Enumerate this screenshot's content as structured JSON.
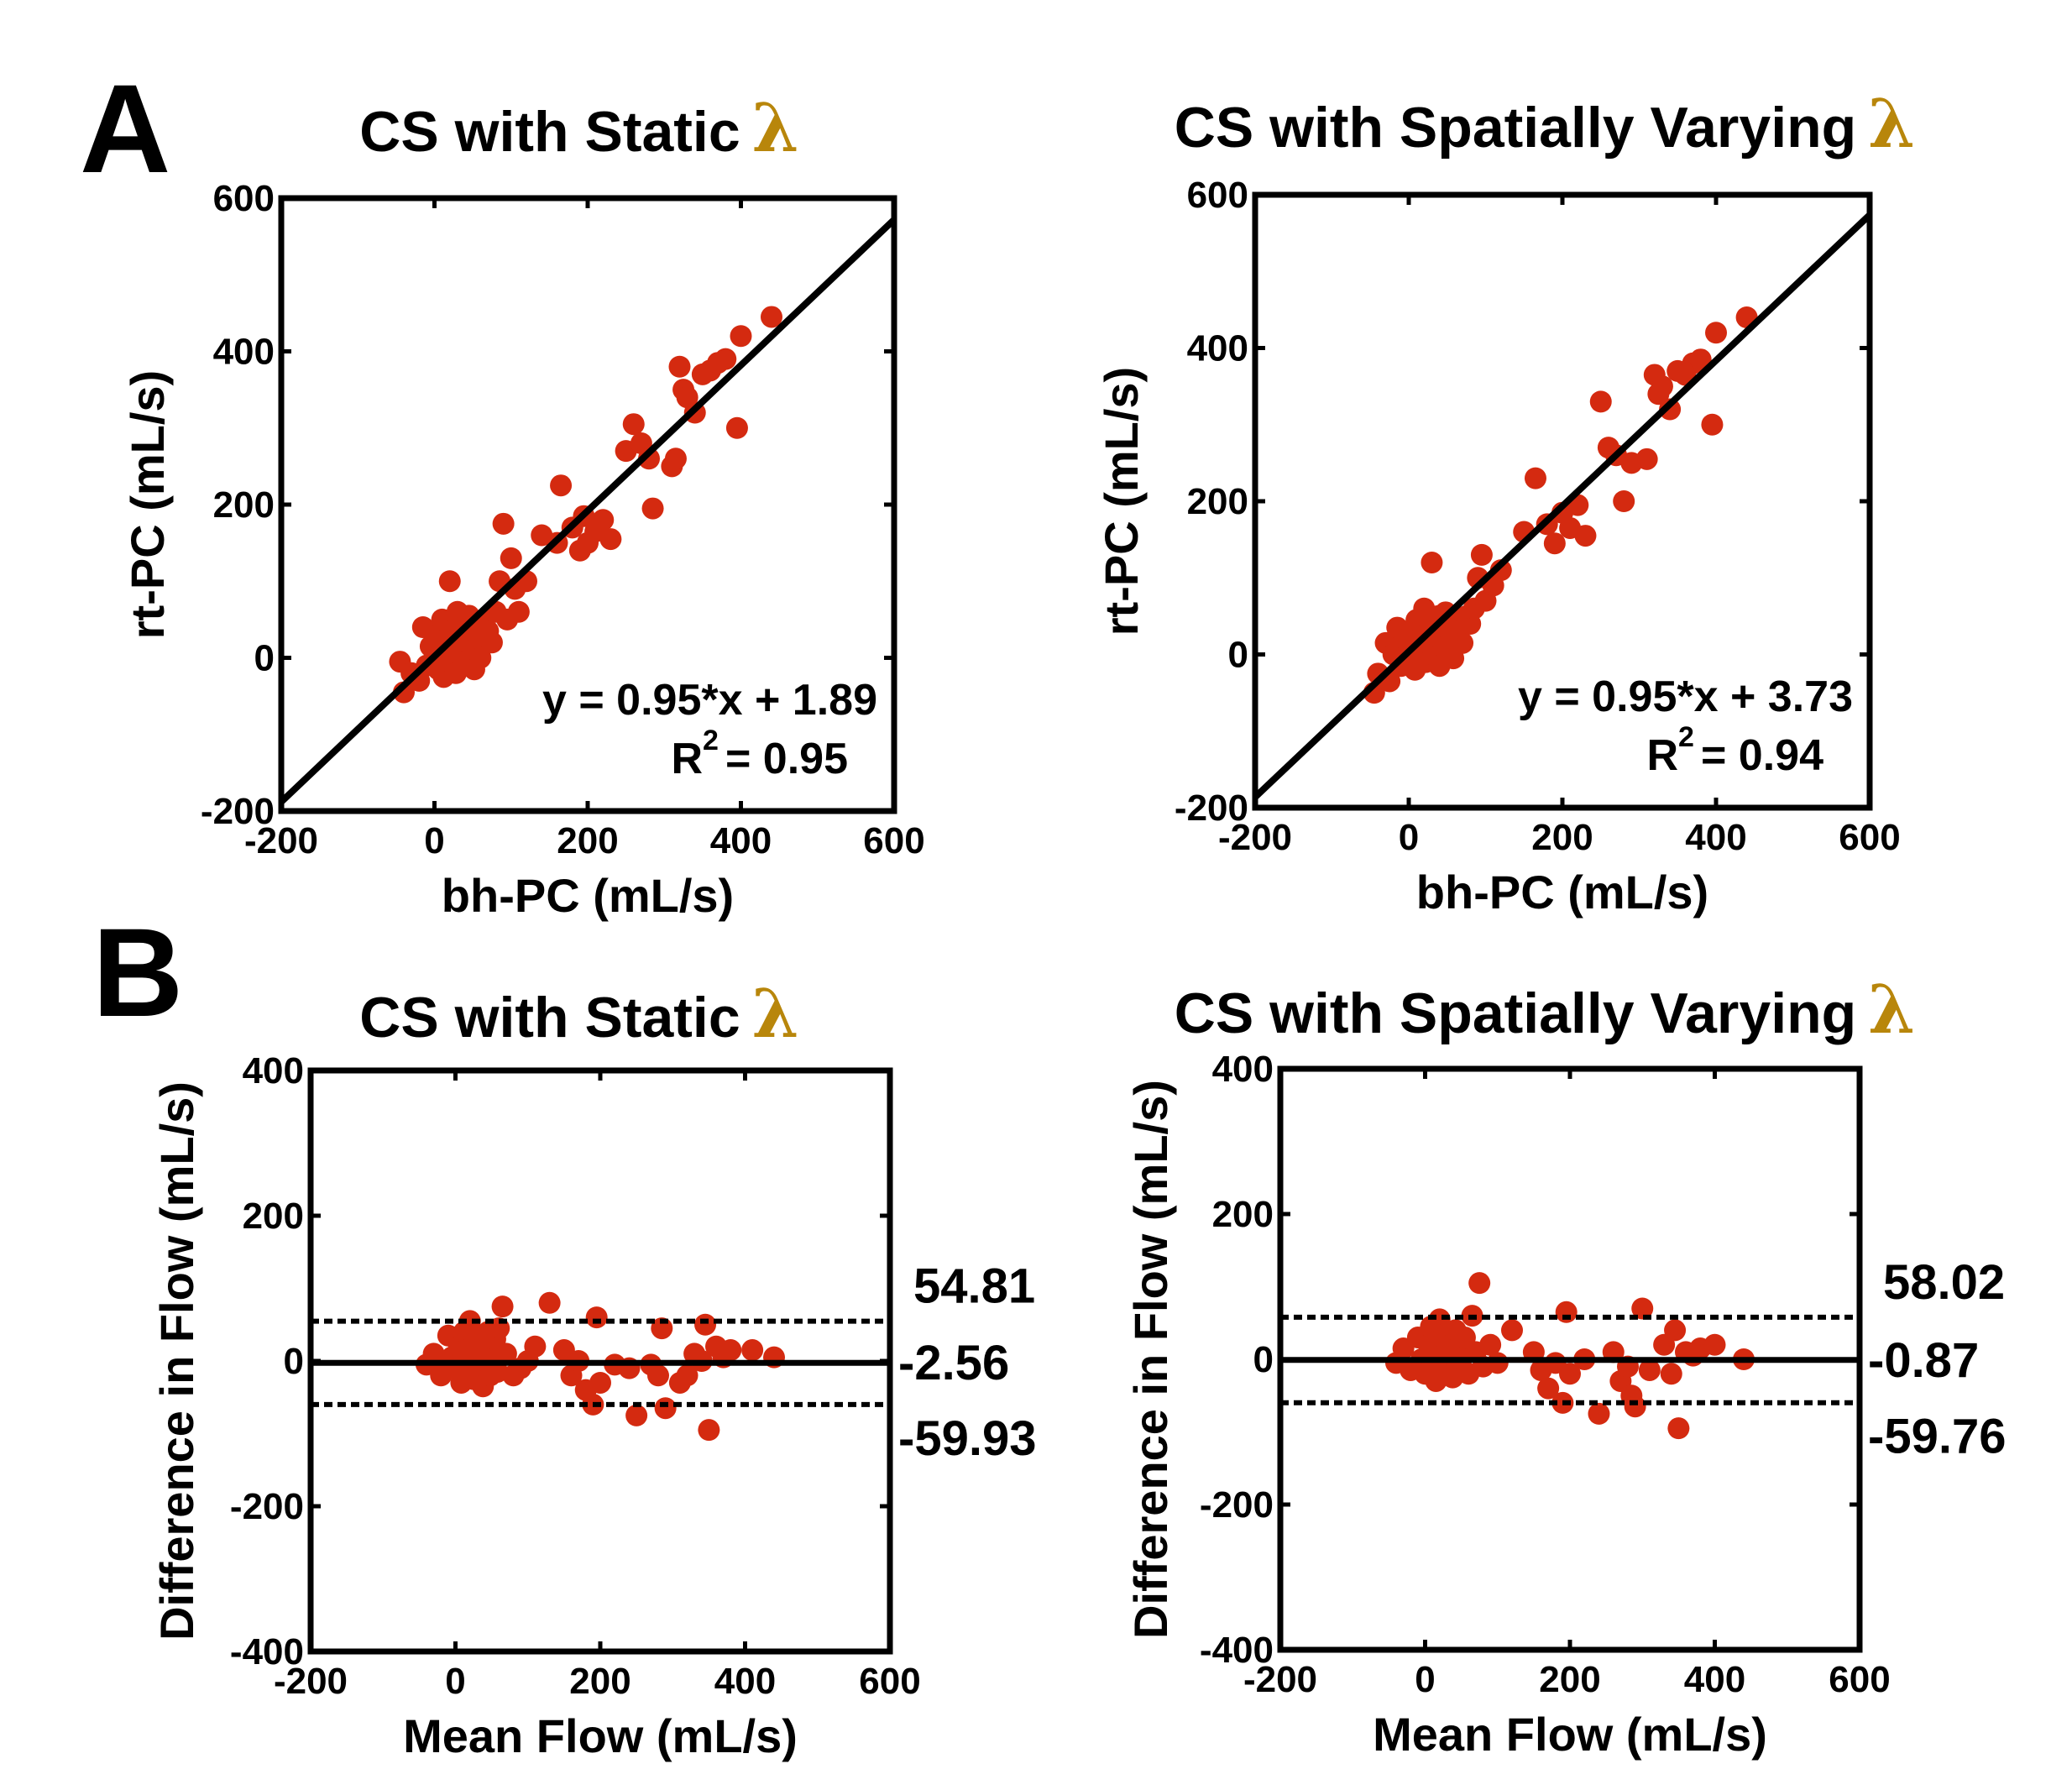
{
  "panel_labels": {
    "a": "A",
    "b": "B"
  },
  "colors": {
    "marker": "#d42a10",
    "line": "#000000",
    "lambda": "#b8860b"
  },
  "chart_data": [
    {
      "type": "scatter",
      "id": "a_static",
      "title": "CS with Static",
      "title_symbol": "λ",
      "xlabel": "bh-PC (mL/s)",
      "ylabel": "rt-PC (mL/s)",
      "xlim": [
        -200,
        600
      ],
      "ylim": [
        -200,
        600
      ],
      "xticks": [
        -200,
        0,
        200,
        400,
        600
      ],
      "yticks": [
        -200,
        0,
        200,
        400,
        600
      ],
      "fit_line": {
        "slope": 0.95,
        "intercept": 1.89
      },
      "equation": "y = 0.95*x + 1.89",
      "r2_label": "R",
      "r2_sup": "2",
      "r2_value": "= 0.95",
      "points": [
        [
          -45,
          -5
        ],
        [
          -40,
          -45
        ],
        [
          -30,
          -20
        ],
        [
          -20,
          -30
        ],
        [
          -15,
          40
        ],
        [
          -10,
          -10
        ],
        [
          -5,
          15
        ],
        [
          0,
          0
        ],
        [
          5,
          30
        ],
        [
          5,
          -15
        ],
        [
          10,
          10
        ],
        [
          10,
          50
        ],
        [
          12,
          -25
        ],
        [
          15,
          20
        ],
        [
          18,
          5
        ],
        [
          20,
          100
        ],
        [
          20,
          -5
        ],
        [
          22,
          35
        ],
        [
          25,
          15
        ],
        [
          28,
          -20
        ],
        [
          30,
          60
        ],
        [
          32,
          25
        ],
        [
          35,
          5
        ],
        [
          38,
          40
        ],
        [
          40,
          -10
        ],
        [
          42,
          20
        ],
        [
          45,
          55
        ],
        [
          48,
          30
        ],
        [
          50,
          10
        ],
        [
          52,
          -15
        ],
        [
          55,
          45
        ],
        [
          58,
          25
        ],
        [
          60,
          0
        ],
        [
          65,
          50
        ],
        [
          70,
          35
        ],
        [
          75,
          20
        ],
        [
          80,
          60
        ],
        [
          85,
          100
        ],
        [
          90,
          175
        ],
        [
          95,
          50
        ],
        [
          100,
          130
        ],
        [
          105,
          90
        ],
        [
          110,
          60
        ],
        [
          120,
          100
        ],
        [
          140,
          160
        ],
        [
          160,
          150
        ],
        [
          165,
          225
        ],
        [
          180,
          170
        ],
        [
          190,
          140
        ],
        [
          195,
          185
        ],
        [
          200,
          150
        ],
        [
          210,
          165
        ],
        [
          220,
          180
        ],
        [
          230,
          155
        ],
        [
          250,
          270
        ],
        [
          260,
          305
        ],
        [
          270,
          280
        ],
        [
          280,
          260
        ],
        [
          285,
          195
        ],
        [
          310,
          250
        ],
        [
          315,
          260
        ],
        [
          320,
          380
        ],
        [
          325,
          350
        ],
        [
          330,
          340
        ],
        [
          340,
          320
        ],
        [
          350,
          370
        ],
        [
          360,
          375
        ],
        [
          370,
          385
        ],
        [
          380,
          390
        ],
        [
          395,
          300
        ],
        [
          400,
          420
        ],
        [
          440,
          445
        ]
      ]
    },
    {
      "type": "scatter",
      "id": "a_varying",
      "title": "CS with Spatially Varying",
      "title_symbol": "λ",
      "xlabel": "bh-PC (mL/s)",
      "ylabel": "rt-PC (mL/s)",
      "xlim": [
        -200,
        600
      ],
      "ylim": [
        -200,
        600
      ],
      "xticks": [
        -200,
        0,
        200,
        400,
        600
      ],
      "yticks": [
        -200,
        0,
        200,
        400,
        600
      ],
      "fit_line": {
        "slope": 0.95,
        "intercept": 3.73
      },
      "equation": "y = 0.95*x + 3.73",
      "r2_label": "R",
      "r2_sup": "2",
      "r2_value": "= 0.94",
      "points": [
        [
          -45,
          -50
        ],
        [
          -40,
          -25
        ],
        [
          -30,
          15
        ],
        [
          -25,
          -35
        ],
        [
          -20,
          0
        ],
        [
          -15,
          35
        ],
        [
          -10,
          -15
        ],
        [
          -5,
          20
        ],
        [
          0,
          5
        ],
        [
          5,
          30
        ],
        [
          8,
          -20
        ],
        [
          10,
          45
        ],
        [
          12,
          10
        ],
        [
          15,
          -5
        ],
        [
          18,
          25
        ],
        [
          20,
          60
        ],
        [
          22,
          -10
        ],
        [
          25,
          15
        ],
        [
          28,
          40
        ],
        [
          30,
          120
        ],
        [
          32,
          0
        ],
        [
          35,
          30
        ],
        [
          38,
          50
        ],
        [
          40,
          -15
        ],
        [
          42,
          20
        ],
        [
          45,
          10
        ],
        [
          48,
          55
        ],
        [
          50,
          35
        ],
        [
          55,
          25
        ],
        [
          58,
          -5
        ],
        [
          60,
          45
        ],
        [
          65,
          30
        ],
        [
          70,
          15
        ],
        [
          75,
          50
        ],
        [
          80,
          40
        ],
        [
          85,
          60
        ],
        [
          90,
          100
        ],
        [
          95,
          130
        ],
        [
          100,
          70
        ],
        [
          110,
          90
        ],
        [
          120,
          110
        ],
        [
          150,
          160
        ],
        [
          165,
          230
        ],
        [
          180,
          170
        ],
        [
          190,
          145
        ],
        [
          200,
          185
        ],
        [
          210,
          165
        ],
        [
          220,
          195
        ],
        [
          230,
          155
        ],
        [
          250,
          330
        ],
        [
          260,
          270
        ],
        [
          270,
          260
        ],
        [
          280,
          200
        ],
        [
          290,
          250
        ],
        [
          310,
          255
        ],
        [
          320,
          365
        ],
        [
          325,
          340
        ],
        [
          330,
          350
        ],
        [
          340,
          320
        ],
        [
          350,
          370
        ],
        [
          360,
          365
        ],
        [
          370,
          380
        ],
        [
          380,
          385
        ],
        [
          395,
          300
        ],
        [
          400,
          420
        ],
        [
          440,
          440
        ]
      ]
    },
    {
      "type": "scatter",
      "id": "b_static",
      "title": "CS with Static",
      "title_symbol": "λ",
      "xlabel": "Mean Flow (mL/s)",
      "ylabel": "Difference in Flow (mL/s)",
      "xlim": [
        -200,
        600
      ],
      "ylim": [
        -400,
        400
      ],
      "xticks": [
        -200,
        0,
        200,
        400,
        600
      ],
      "yticks": [
        -400,
        -200,
        0,
        200,
        400
      ],
      "bland_altman": {
        "mean": -2.56,
        "upper": 54.81,
        "lower": -59.93
      },
      "mean_label": "-2.56",
      "upper_label": "54.81",
      "lower_label": "-59.93",
      "points": [
        [
          -40,
          -5
        ],
        [
          -30,
          10
        ],
        [
          -20,
          -20
        ],
        [
          -10,
          35
        ],
        [
          -5,
          5
        ],
        [
          0,
          -10
        ],
        [
          5,
          20
        ],
        [
          8,
          -30
        ],
        [
          10,
          0
        ],
        [
          12,
          40
        ],
        [
          15,
          15
        ],
        [
          18,
          -15
        ],
        [
          20,
          55
        ],
        [
          22,
          5
        ],
        [
          25,
          -25
        ],
        [
          28,
          30
        ],
        [
          30,
          10
        ],
        [
          32,
          -5
        ],
        [
          35,
          25
        ],
        [
          38,
          -35
        ],
        [
          40,
          15
        ],
        [
          42,
          0
        ],
        [
          45,
          40
        ],
        [
          48,
          -20
        ],
        [
          50,
          20
        ],
        [
          52,
          5
        ],
        [
          55,
          30
        ],
        [
          58,
          -15
        ],
        [
          60,
          45
        ],
        [
          65,
          75
        ],
        [
          70,
          10
        ],
        [
          80,
          -20
        ],
        [
          90,
          -10
        ],
        [
          100,
          0
        ],
        [
          110,
          20
        ],
        [
          130,
          80
        ],
        [
          150,
          15
        ],
        [
          160,
          -20
        ],
        [
          170,
          0
        ],
        [
          180,
          -40
        ],
        [
          190,
          -60
        ],
        [
          195,
          60
        ],
        [
          200,
          -30
        ],
        [
          220,
          -5
        ],
        [
          240,
          -10
        ],
        [
          250,
          -75
        ],
        [
          270,
          -5
        ],
        [
          280,
          -20
        ],
        [
          285,
          45
        ],
        [
          290,
          -65
        ],
        [
          310,
          -30
        ],
        [
          320,
          -20
        ],
        [
          330,
          10
        ],
        [
          340,
          0
        ],
        [
          345,
          50
        ],
        [
          350,
          -95
        ],
        [
          360,
          20
        ],
        [
          370,
          5
        ],
        [
          380,
          15
        ],
        [
          410,
          15
        ],
        [
          440,
          5
        ]
      ]
    },
    {
      "type": "scatter",
      "id": "b_varying",
      "title": "CS with Spatially Varying",
      "title_symbol": "λ",
      "xlabel": "Mean Flow (mL/s)",
      "ylabel": "Difference in Flow (mL/s)",
      "xlim": [
        -200,
        600
      ],
      "ylim": [
        -400,
        400
      ],
      "xticks": [
        -200,
        0,
        200,
        400,
        600
      ],
      "yticks": [
        -400,
        -200,
        0,
        200,
        400
      ],
      "bland_altman": {
        "mean": -0.87,
        "upper": 58.02,
        "lower": -59.76
      },
      "mean_label": "-0.87",
      "upper_label": "58.02",
      "lower_label": "-59.76",
      "points": [
        [
          -40,
          -5
        ],
        [
          -30,
          15
        ],
        [
          -20,
          -15
        ],
        [
          -10,
          30
        ],
        [
          -5,
          0
        ],
        [
          0,
          -20
        ],
        [
          5,
          20
        ],
        [
          8,
          45
        ],
        [
          10,
          -10
        ],
        [
          12,
          10
        ],
        [
          15,
          -30
        ],
        [
          18,
          25
        ],
        [
          20,
          55
        ],
        [
          22,
          5
        ],
        [
          25,
          -15
        ],
        [
          28,
          35
        ],
        [
          30,
          15
        ],
        [
          32,
          -5
        ],
        [
          35,
          20
        ],
        [
          38,
          -25
        ],
        [
          40,
          5
        ],
        [
          42,
          40
        ],
        [
          45,
          -10
        ],
        [
          48,
          20
        ],
        [
          50,
          0
        ],
        [
          55,
          30
        ],
        [
          60,
          -20
        ],
        [
          65,
          60
        ],
        [
          70,
          10
        ],
        [
          75,
          105
        ],
        [
          80,
          -10
        ],
        [
          90,
          20
        ],
        [
          100,
          -5
        ],
        [
          120,
          40
        ],
        [
          150,
          10
        ],
        [
          160,
          -15
        ],
        [
          170,
          -40
        ],
        [
          180,
          -5
        ],
        [
          190,
          -60
        ],
        [
          195,
          65
        ],
        [
          200,
          -20
        ],
        [
          220,
          0
        ],
        [
          240,
          -75
        ],
        [
          260,
          10
        ],
        [
          270,
          -30
        ],
        [
          280,
          -10
        ],
        [
          285,
          -50
        ],
        [
          290,
          -65
        ],
        [
          300,
          70
        ],
        [
          310,
          -15
        ],
        [
          330,
          20
        ],
        [
          340,
          -20
        ],
        [
          345,
          40
        ],
        [
          350,
          -95
        ],
        [
          360,
          10
        ],
        [
          370,
          5
        ],
        [
          380,
          15
        ],
        [
          400,
          20
        ],
        [
          440,
          0
        ]
      ]
    }
  ]
}
